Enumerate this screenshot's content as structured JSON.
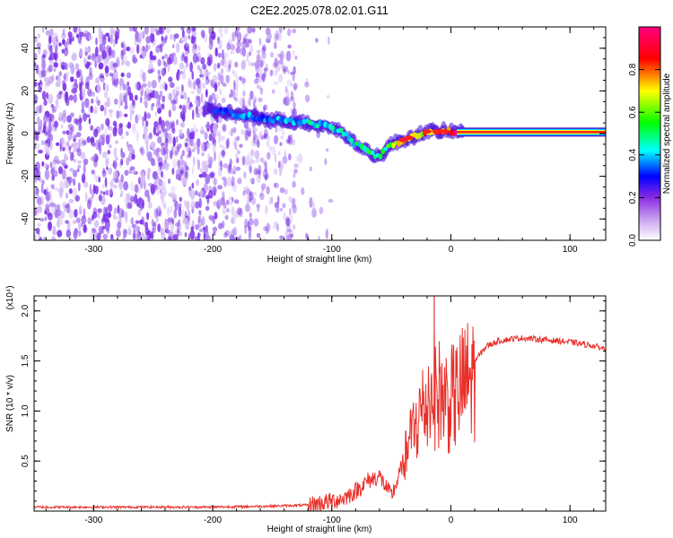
{
  "page_title": "C2E2.2025.078.02.01.G11",
  "chart_data": [
    {
      "type": "heatmap",
      "title": "C2E2.2025.078.02.01.G11",
      "xlabel": "Height of straight line (km)",
      "ylabel": "Frequency (Hz)",
      "xlim": [
        -350,
        130
      ],
      "ylim": [
        -50,
        50
      ],
      "x_ticks": [
        -300,
        -200,
        -100,
        0,
        100
      ],
      "y_ticks": [
        -40,
        -20,
        0,
        20,
        40
      ],
      "colorbar": {
        "label": "Normalized spectral amplitude",
        "range": [
          0,
          1
        ],
        "ticks": [
          "0.0",
          "0.2",
          "0.4",
          "0.6",
          "0.8"
        ],
        "colors": [
          "#ffffff",
          "#8a2be2",
          "#0000ff",
          "#00ffff",
          "#00ff00",
          "#ffff00",
          "#ff0000",
          "#ff0080"
        ]
      },
      "ridge": {
        "x": [
          -200,
          -180,
          -160,
          -140,
          -120,
          -100,
          -90,
          -80,
          -70,
          -60,
          -50,
          -40,
          -30,
          -20,
          -10,
          0,
          10,
          130
        ],
        "frequency": [
          11,
          9,
          7,
          6,
          5,
          3,
          0,
          -5,
          -8,
          -11,
          -5,
          -3,
          -1,
          1,
          1,
          1,
          1,
          0.5
        ],
        "amplitude": [
          0.3,
          0.35,
          0.4,
          0.4,
          0.45,
          0.45,
          0.5,
          0.5,
          0.55,
          0.5,
          0.6,
          0.75,
          0.7,
          0.85,
          0.9,
          0.95,
          0.98,
          0.98
        ]
      }
    },
    {
      "type": "line",
      "xlabel": "Height of straight line (km)",
      "ylabel": "SNR (10 * v/v)",
      "y_scale_label": "(x10⁴)",
      "xlim": [
        -350,
        130
      ],
      "ylim": [
        0,
        2.15
      ],
      "x_ticks": [
        -300,
        -200,
        -100,
        0,
        100
      ],
      "y_ticks": [
        0.5,
        1.0,
        1.5,
        2.0
      ],
      "series": [
        {
          "name": "SNR",
          "color": "#e8302a",
          "x": [
            -350,
            -300,
            -250,
            -200,
            -150,
            -120,
            -110,
            -100,
            -90,
            -80,
            -70,
            -60,
            -55,
            -50,
            -45,
            -40,
            -35,
            -30,
            -25,
            -20,
            -15,
            -10,
            -5,
            0,
            5,
            10,
            20,
            30,
            40,
            50,
            60,
            70,
            80,
            90,
            100,
            110,
            120,
            130
          ],
          "values": [
            0.04,
            0.04,
            0.04,
            0.04,
            0.05,
            0.06,
            0.08,
            0.1,
            0.13,
            0.2,
            0.3,
            0.35,
            0.25,
            0.15,
            0.3,
            0.5,
            0.75,
            0.95,
            1.1,
            1.2,
            1.35,
            1.3,
            1.25,
            1.22,
            1.3,
            1.4,
            1.5,
            1.65,
            1.7,
            1.72,
            1.73,
            1.72,
            1.71,
            1.7,
            1.69,
            1.67,
            1.65,
            1.62
          ]
        }
      ]
    }
  ]
}
